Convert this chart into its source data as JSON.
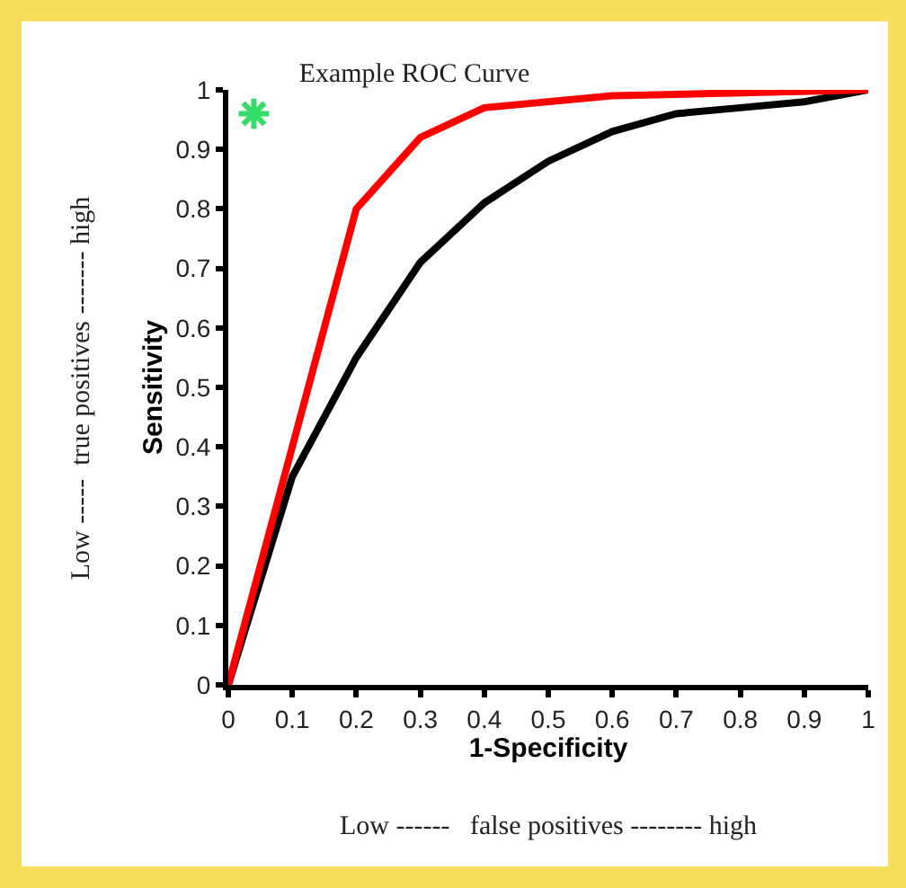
{
  "chart_data": {
    "type": "line",
    "title": "Example ROC Curve",
    "xlabel": "1-Specificity",
    "ylabel": "Sensitivity",
    "annotations": [
      "Low ------   false positives -------- high",
      "Low -----  true positives ------- high"
    ],
    "xlim": [
      0,
      1
    ],
    "ylim": [
      0,
      1
    ],
    "xticks": [
      0,
      0.1,
      0.2,
      0.3,
      0.4,
      0.5,
      0.6,
      0.7,
      0.8,
      0.9,
      1
    ],
    "yticks": [
      0,
      0.1,
      0.2,
      0.3,
      0.4,
      0.5,
      0.6,
      0.7,
      0.8,
      0.9,
      1
    ],
    "series": [
      {
        "color": "#000000",
        "marker": "none",
        "x": [
          0,
          0.1,
          0.2,
          0.3,
          0.4,
          0.5,
          0.6,
          0.7,
          0.8,
          0.9,
          1
        ],
        "values": [
          0,
          0.35,
          0.55,
          0.71,
          0.81,
          0.88,
          0.93,
          0.96,
          0.97,
          0.98,
          1
        ]
      },
      {
        "color": "#ff0000",
        "marker": "none",
        "x": [
          0,
          0.2,
          0.3,
          0.4,
          0.6,
          1
        ],
        "values": [
          0,
          0.8,
          0.92,
          0.97,
          0.99,
          1
        ]
      },
      {
        "type": "scatter",
        "color": "#33dd66",
        "marker": "cross",
        "x": [
          0.04
        ],
        "values": [
          0.96
        ]
      }
    ]
  }
}
